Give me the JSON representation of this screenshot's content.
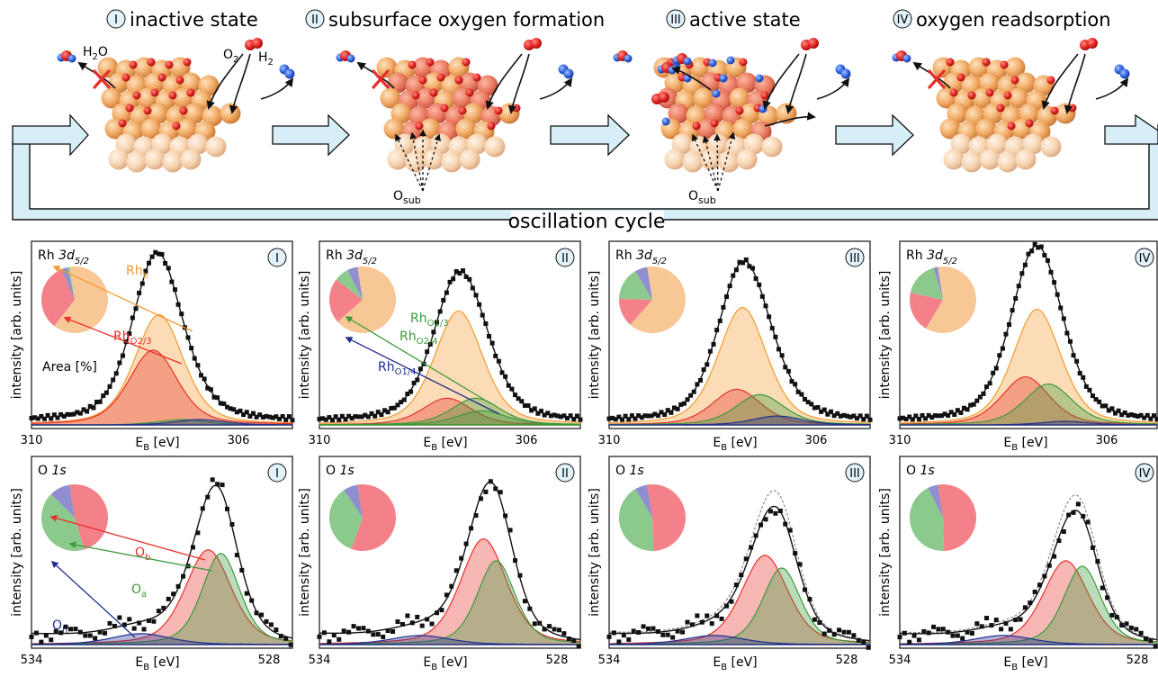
{
  "stages": [
    {
      "numeral": "I",
      "title": "inactive state"
    },
    {
      "numeral": "II",
      "title": "subsurface oxygen formation"
    },
    {
      "numeral": "III",
      "title": "active state"
    },
    {
      "numeral": "IV",
      "title": "oxygen readsorption"
    }
  ],
  "molecules": {
    "water": "H",
    "water_sub": "2",
    "water_tail": "O",
    "oxygen": "O",
    "oxygen_sub": "2",
    "hydrogen": "H",
    "hydrogen_sub": "2"
  },
  "osub": {
    "main": "O",
    "sub": "sub"
  },
  "cycle_label": "oscillation cycle",
  "rh_panels": {
    "spectrum_main": "Rh ",
    "spectrum_italic": "3d",
    "spectrum_sub": "5/2",
    "ylabel": "intensity [arb. units]",
    "xlabel_main": "E",
    "xlabel_sub": "B",
    "xlabel_unit": " [eV]",
    "xticks": [
      "310",
      "306"
    ],
    "labels": {
      "rhb": "Rh",
      "rhb_sub": "b",
      "rho23": "Rh",
      "rho23_sub": "O2/3",
      "rho13": "Rh",
      "rho13_sub": "O1/3",
      "rho24": "Rh",
      "rho24_sub": "O2/4",
      "rho14": "Rh",
      "rho14_sub": "O1/4",
      "area": "Area [%]"
    }
  },
  "o_panels": {
    "spectrum_main": "O ",
    "spectrum_italic": "1s",
    "ylabel": "intensity [arb. units]",
    "xlabel_main": "E",
    "xlabel_sub": "B",
    "xlabel_unit": " [eV]",
    "xticks": [
      "534",
      "528"
    ],
    "labels": {
      "ob": "O",
      "ob_sub": "b",
      "oa": "O",
      "oa_sub": "a",
      "oh": "O",
      "oh_sub": "h"
    }
  },
  "colors": {
    "orange": "#f39a2e",
    "red": "#e8302b",
    "green": "#3d9a3d",
    "navy": "#1f2f8f",
    "arrow_fill": "#d7eef8"
  },
  "chart_data": [
    {
      "type": "area",
      "panel": "Rh 3d5/2 I",
      "x_range": [
        310,
        305.5
      ],
      "series": [
        {
          "name": "Rh_b",
          "center": 307.8,
          "height": 0.62
        },
        {
          "name": "Rh_O2/3",
          "center": 307.9,
          "height": 0.42
        },
        {
          "name": "Rh_O1/3",
          "center": 307.4,
          "height": 0.03
        },
        {
          "name": "Rh_O1/4",
          "center": 307.1,
          "height": 0.03
        }
      ],
      "pie": [
        {
          "name": "Rh_b",
          "percent": 63
        },
        {
          "name": "Rh_O2/3",
          "percent": 33
        },
        {
          "name": "Rh_O1/4",
          "percent": 3
        },
        {
          "name": "Rh_O1/3",
          "percent": 1
        }
      ]
    },
    {
      "type": "area",
      "panel": "Rh 3d5/2 II",
      "x_range": [
        310,
        305.5
      ],
      "series": [
        {
          "name": "Rh_b",
          "center": 307.6,
          "height": 0.64
        },
        {
          "name": "Rh_O2/3",
          "center": 307.8,
          "height": 0.15
        },
        {
          "name": "Rh_O1/3",
          "center": 307.3,
          "height": 0.15
        },
        {
          "name": "Rh_O2/4",
          "center": 307.2,
          "height": 0.08
        }
      ],
      "pie": [
        {
          "name": "Rh_b",
          "percent": 66
        },
        {
          "name": "Rh_O2/3",
          "percent": 22
        },
        {
          "name": "Rh_O1/3",
          "percent": 7
        },
        {
          "name": "Rh_O1/4",
          "percent": 5
        }
      ]
    },
    {
      "type": "area",
      "panel": "Rh 3d5/2 III",
      "x_range": [
        310,
        305.5
      ],
      "series": [
        {
          "name": "Rh_b",
          "center": 307.7,
          "height": 0.66
        },
        {
          "name": "Rh_O2/3",
          "center": 307.8,
          "height": 0.2
        },
        {
          "name": "Rh_O1/3",
          "center": 307.4,
          "height": 0.17
        },
        {
          "name": "Rh_O1/4",
          "center": 307.1,
          "height": 0.05
        }
      ],
      "pie": [
        {
          "name": "Rh_b",
          "percent": 64
        },
        {
          "name": "Rh_O2/3",
          "percent": 14
        },
        {
          "name": "Rh_O1/3",
          "percent": 16
        },
        {
          "name": "Rh_O1/4",
          "percent": 6
        }
      ]
    },
    {
      "type": "area",
      "panel": "Rh 3d5/2 IV",
      "x_range": [
        310,
        305.5
      ],
      "series": [
        {
          "name": "Rh_b",
          "center": 307.6,
          "height": 0.65
        },
        {
          "name": "Rh_O2/3",
          "center": 307.8,
          "height": 0.27
        },
        {
          "name": "Rh_O1/3",
          "center": 307.4,
          "height": 0.23
        },
        {
          "name": "Rh_O1/4",
          "center": 307.1,
          "height": 0.02
        }
      ],
      "pie": [
        {
          "name": "Rh_b",
          "percent": 61
        },
        {
          "name": "Rh_O2/3",
          "percent": 20
        },
        {
          "name": "Rh_O1/3",
          "percent": 17
        },
        {
          "name": "Rh_O1/4",
          "percent": 2
        }
      ]
    },
    {
      "type": "area",
      "panel": "O 1s I",
      "x_range": [
        534,
        527.8
      ],
      "series": [
        {
          "name": "O_b",
          "center": 529.8,
          "height": 0.52
        },
        {
          "name": "O_a",
          "center": 529.5,
          "height": 0.5
        },
        {
          "name": "O_h",
          "center": 531.4,
          "height": 0.06
        }
      ],
      "pie": [
        {
          "name": "O_b",
          "percent": 48
        },
        {
          "name": "O_a",
          "percent": 42
        },
        {
          "name": "O_h",
          "percent": 10
        }
      ]
    },
    {
      "type": "area",
      "panel": "O 1s II",
      "x_range": [
        534,
        527.8
      ],
      "series": [
        {
          "name": "O_b",
          "center": 530.1,
          "height": 0.58
        },
        {
          "name": "O_a",
          "center": 529.8,
          "height": 0.46
        },
        {
          "name": "O_h",
          "center": 531.6,
          "height": 0.05
        }
      ],
      "pie": [
        {
          "name": "O_b",
          "percent": 58
        },
        {
          "name": "O_a",
          "percent": 35
        },
        {
          "name": "O_h",
          "percent": 7
        }
      ]
    },
    {
      "type": "area",
      "panel": "O 1s III",
      "x_range": [
        534,
        527.8
      ],
      "series": [
        {
          "name": "O_b",
          "center": 530.3,
          "height": 0.49
        },
        {
          "name": "O_a",
          "center": 529.9,
          "height": 0.42
        },
        {
          "name": "O_h",
          "center": 531.5,
          "height": 0.05
        }
      ],
      "pie": [
        {
          "name": "O_b",
          "percent": 52
        },
        {
          "name": "O_a",
          "percent": 42
        },
        {
          "name": "O_h",
          "percent": 6
        }
      ]
    },
    {
      "type": "area",
      "panel": "O 1s IV",
      "x_range": [
        534,
        527.8
      ],
      "series": [
        {
          "name": "O_b",
          "center": 530.0,
          "height": 0.46
        },
        {
          "name": "O_a",
          "center": 529.6,
          "height": 0.43
        },
        {
          "name": "O_h",
          "center": 531.5,
          "height": 0.05
        }
      ],
      "pie": [
        {
          "name": "O_b",
          "percent": 52
        },
        {
          "name": "O_a",
          "percent": 43
        },
        {
          "name": "O_h",
          "percent": 5
        }
      ]
    }
  ]
}
